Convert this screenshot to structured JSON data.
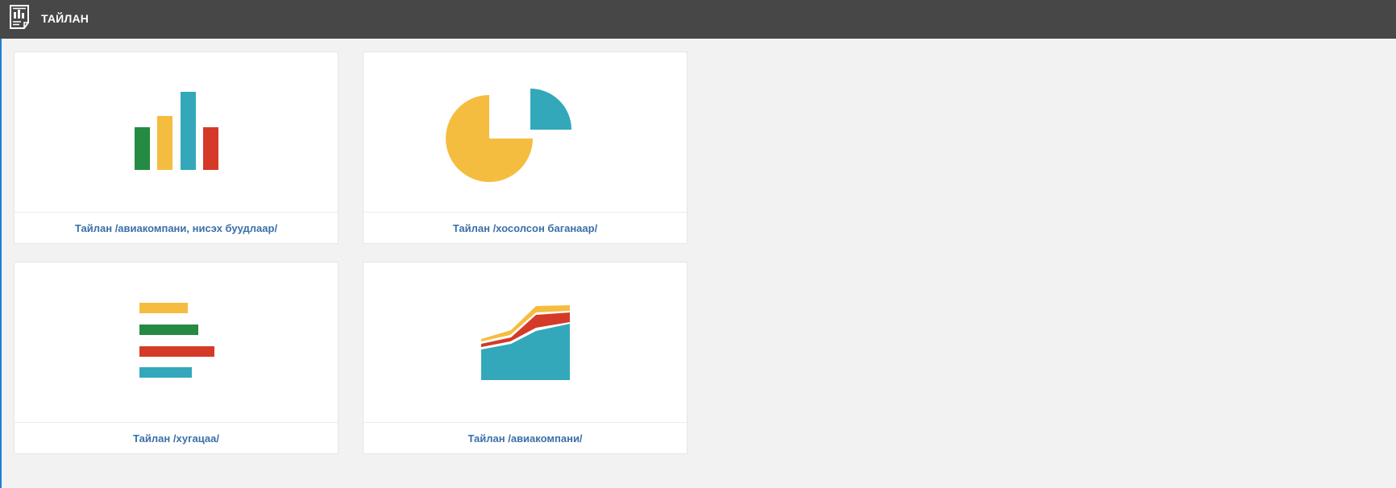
{
  "header": {
    "title": "ТАЙЛАН",
    "icon": "report-icon"
  },
  "colors": {
    "green": "#258a42",
    "yellow": "#f5bd40",
    "teal": "#33a8ba",
    "red": "#d53a28",
    "header_bg": "#474747",
    "link": "#3a6fa8"
  },
  "reports": [
    {
      "label": "Тайлан /авиакомпани, нисэх буудлаар/",
      "icon": "bar-chart-icon"
    },
    {
      "label": "Тайлан /хосолсон баганаар/",
      "icon": "pie-chart-icon"
    },
    {
      "label": "Тайлан /хугацаа/",
      "icon": "horizontal-bar-chart-icon"
    },
    {
      "label": "Тайлан /авиакомпани/",
      "icon": "area-chart-icon"
    }
  ]
}
